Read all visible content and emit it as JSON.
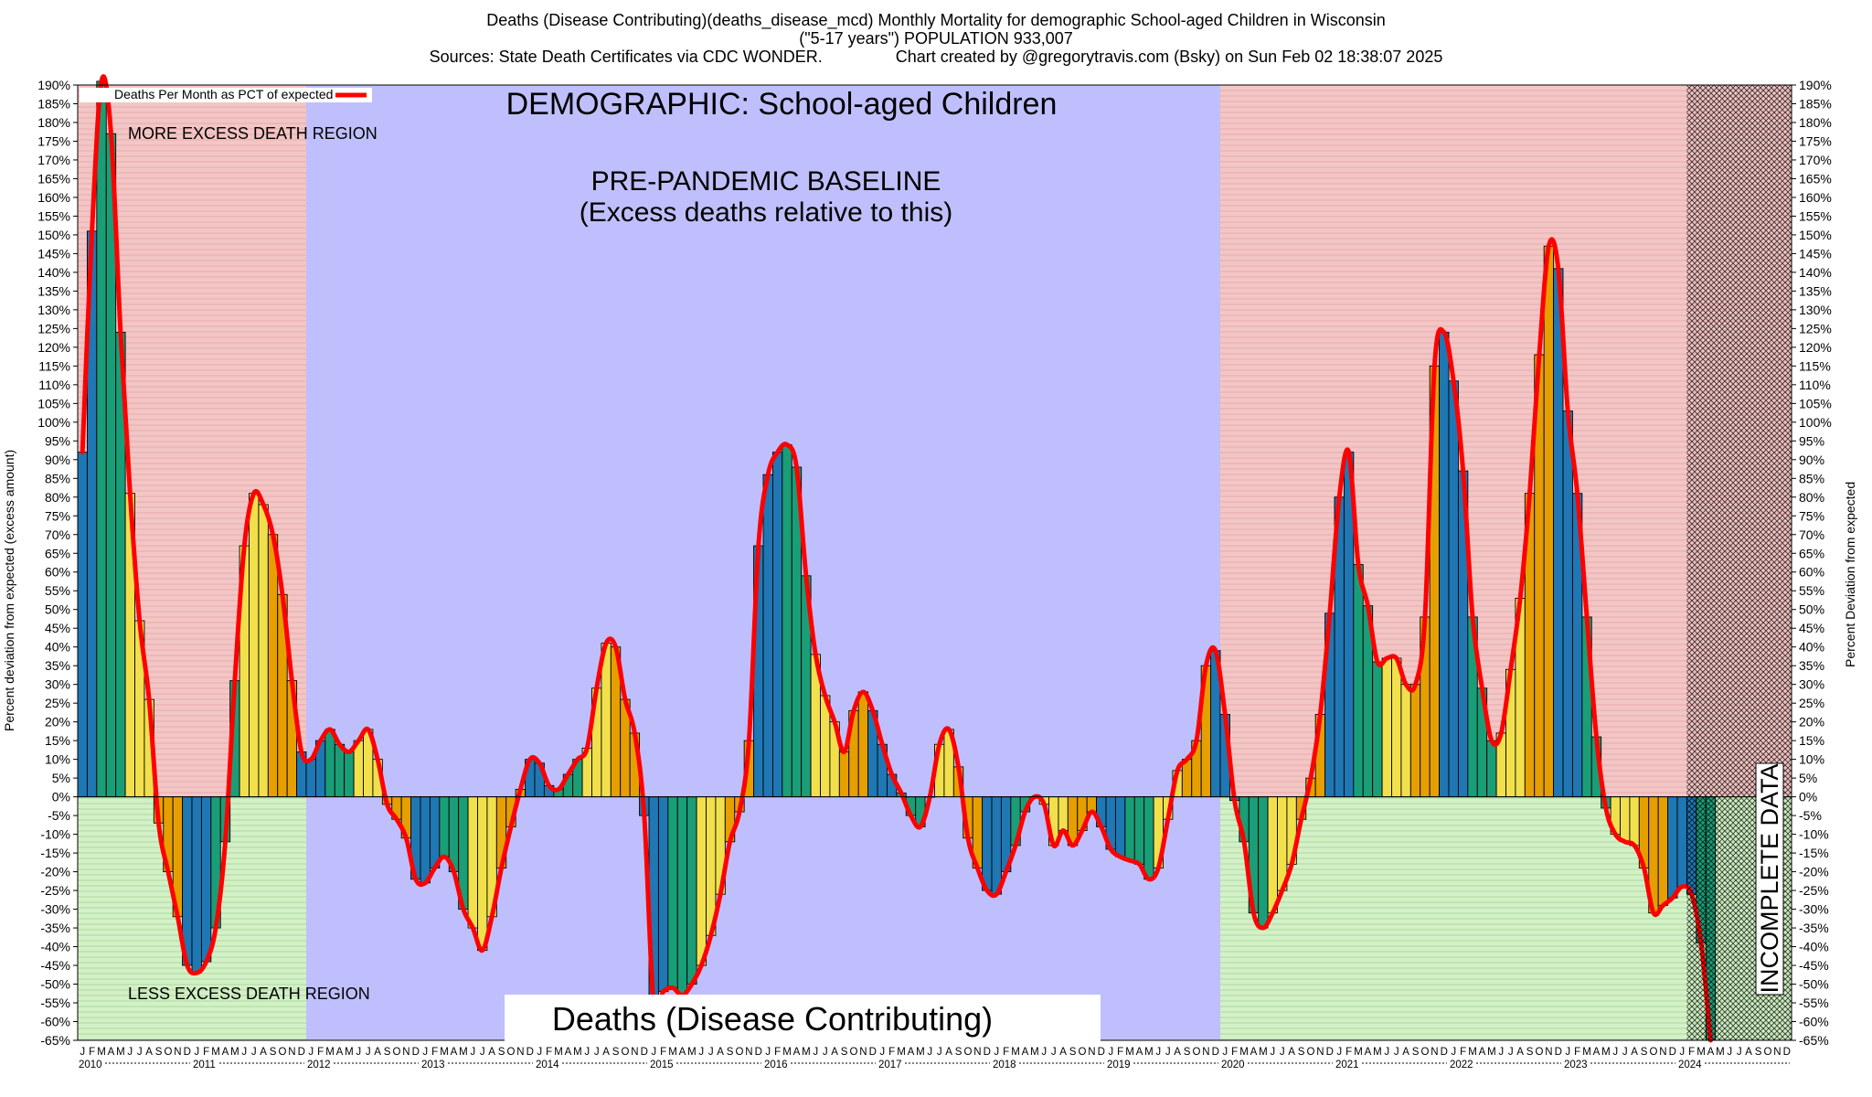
{
  "title": {
    "line1": "Deaths (Disease Contributing)(deaths_disease_mcd) Monthly Mortality for demographic School-aged Children in Wisconsin",
    "line2": "(\"5-17 years\") POPULATION 933,007",
    "line3": "Sources: State Death Certificates via CDC WONDER.                Chart created by @gregorytravis.com (Bsky) on Sun Feb 02 18:38:07 2025"
  },
  "annotations": {
    "demographic": "DEMOGRAPHIC: School-aged Children",
    "baseline1": "PRE-PANDEMIC BASELINE",
    "baseline2": "(Excess deaths relative to this)",
    "more_excess": "MORE EXCESS DEATH REGION",
    "less_excess": "LESS EXCESS DEATH REGION",
    "incomplete": "INCOMPLETE DATA",
    "bottom_label": "Deaths (Disease Contributing)"
  },
  "chart_data": {
    "type": "bar",
    "ylabel": "Percent deviation from expected (excess amount)",
    "ylabel_right": "Percent Deviation from expected",
    "ylim": [
      -65,
      190
    ],
    "ytick_step": 5,
    "legend": {
      "label": "Deaths Per Month as PCT of expected",
      "placement": "top-left"
    },
    "x_start": "2010-01",
    "years": [
      "2010",
      "2011",
      "2012",
      "2013",
      "2014",
      "2015",
      "2016",
      "2017",
      "2018",
      "2019",
      "2020",
      "2021",
      "2022",
      "2023",
      "2024"
    ],
    "month_letters": [
      "J",
      "F",
      "M",
      "A",
      "M",
      "J",
      "J",
      "A",
      "S",
      "O",
      "N",
      "D"
    ],
    "shaded_regions": {
      "pre_pandemic_baseline": [
        "2012-01",
        "2019-12"
      ],
      "incomplete_data": [
        "2024-02",
        "2024-12"
      ]
    },
    "season_colors": {
      "winter": "#1f77b4",
      "spring": "#1a9e77",
      "summer": "#f1e04c",
      "fall": "#e69f00"
    },
    "line_color": "#ff0000",
    "values": [
      92,
      151,
      191,
      177,
      124,
      81,
      47,
      26,
      -7,
      -20,
      -32,
      -45,
      -47,
      -44,
      -35,
      -12,
      31,
      67,
      81,
      78,
      70,
      54,
      31,
      12,
      10,
      15,
      18,
      14,
      12,
      15,
      18,
      10,
      -2,
      -6,
      -11,
      -22,
      -23,
      -19,
      -16,
      -20,
      -30,
      -35,
      -41,
      -32,
      -19,
      -8,
      2,
      10,
      9,
      3,
      2,
      6,
      10,
      13,
      29,
      41,
      40,
      26,
      17,
      -5,
      -56,
      -52,
      -51,
      -53,
      -50,
      -45,
      -37,
      -26,
      -12,
      -4,
      15,
      67,
      86,
      92,
      94,
      88,
      59,
      38,
      27,
      20,
      12,
      23,
      28,
      23,
      14,
      6,
      1,
      -5,
      -8,
      0,
      14,
      18,
      8,
      -11,
      -19,
      -25,
      -26,
      -20,
      -13,
      -4,
      0,
      -2,
      -13,
      -9,
      -13,
      -9,
      -4,
      -8,
      -14,
      -16,
      -17,
      -18,
      -22,
      -19,
      -6,
      7,
      10,
      15,
      35,
      39,
      22,
      -1,
      -12,
      -31,
      -35,
      -31,
      -25,
      -18,
      -6,
      5,
      22,
      49,
      80,
      92,
      62,
      51,
      36,
      37,
      37,
      30,
      30,
      48,
      115,
      124,
      111,
      87,
      48,
      29,
      15,
      17,
      34,
      53,
      81,
      118,
      147,
      141,
      103,
      81,
      48,
      16,
      -3,
      -10,
      -12,
      -13,
      -19,
      -31,
      -29,
      -27,
      -24,
      -26,
      -39,
      -65
    ]
  }
}
